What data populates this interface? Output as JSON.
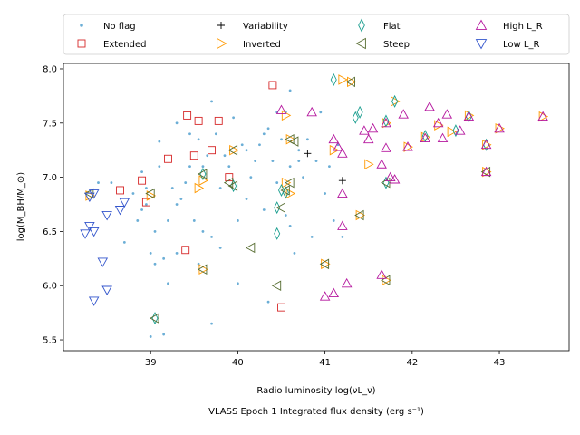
{
  "chart_data": {
    "type": "scatter",
    "title": "",
    "xlabel": "Radio luminosity log(νL_ν)",
    "ylabel": "log(M_BH/M_⊙)",
    "caption": "VLASS Epoch 1 Integrated flux density (erg s⁻¹)",
    "xlim": [
      38.0,
      43.8
    ],
    "ylim": [
      5.4,
      8.05
    ],
    "xticks": [
      39,
      40,
      41,
      42,
      43
    ],
    "yticks": [
      5.5,
      6.0,
      6.5,
      7.0,
      7.5,
      8.0
    ],
    "legend_position": "upper-outside",
    "series": [
      {
        "name": "No flag",
        "marker": "dot",
        "color": "#6baed6",
        "points": [
          [
            38.4,
            6.95
          ],
          [
            38.55,
            6.95
          ],
          [
            38.7,
            6.4
          ],
          [
            38.8,
            6.85
          ],
          [
            38.85,
            6.6
          ],
          [
            38.9,
            6.7
          ],
          [
            38.95,
            6.75
          ],
          [
            39.0,
            6.3
          ],
          [
            39.05,
            6.5
          ],
          [
            39.1,
            7.1
          ],
          [
            39.15,
            6.25
          ],
          [
            39.2,
            6.6
          ],
          [
            39.25,
            6.9
          ],
          [
            39.3,
            6.3
          ],
          [
            39.3,
            7.5
          ],
          [
            39.35,
            6.8
          ],
          [
            39.4,
            6.95
          ],
          [
            39.45,
            7.1
          ],
          [
            39.5,
            6.6
          ],
          [
            39.55,
            7.35
          ],
          [
            39.6,
            6.5
          ],
          [
            39.65,
            7.2
          ],
          [
            39.7,
            6.45
          ],
          [
            39.7,
            7.7
          ],
          [
            39.75,
            7.4
          ],
          [
            39.8,
            6.9
          ],
          [
            39.85,
            7.2
          ],
          [
            39.9,
            7.1
          ],
          [
            40.0,
            6.6
          ],
          [
            40.05,
            7.3
          ],
          [
            40.1,
            6.8
          ],
          [
            40.15,
            7.0
          ],
          [
            40.2,
            7.15
          ],
          [
            40.25,
            7.3
          ],
          [
            40.3,
            6.7
          ],
          [
            40.35,
            7.45
          ],
          [
            40.4,
            7.15
          ],
          [
            40.45,
            6.95
          ],
          [
            40.5,
            7.35
          ],
          [
            40.55,
            6.65
          ],
          [
            40.6,
            7.1
          ],
          [
            40.6,
            7.8
          ],
          [
            40.65,
            6.3
          ],
          [
            40.7,
            7.25
          ],
          [
            40.75,
            7.0
          ],
          [
            40.8,
            7.35
          ],
          [
            40.85,
            6.45
          ],
          [
            40.9,
            7.15
          ],
          [
            40.95,
            7.6
          ],
          [
            41.0,
            6.85
          ],
          [
            41.05,
            7.1
          ],
          [
            41.1,
            6.6
          ],
          [
            41.15,
            7.3
          ],
          [
            41.2,
            6.45
          ],
          [
            39.15,
            5.55
          ],
          [
            39.0,
            5.53
          ],
          [
            39.7,
            5.65
          ],
          [
            40.35,
            5.85
          ],
          [
            39.2,
            6.02
          ],
          [
            40.0,
            6.02
          ],
          [
            39.55,
            6.2
          ],
          [
            39.1,
            7.33
          ],
          [
            38.9,
            7.05
          ],
          [
            39.45,
            7.4
          ],
          [
            40.55,
            7.6
          ],
          [
            40.1,
            7.25
          ],
          [
            38.95,
            6.9
          ],
          [
            39.3,
            6.75
          ],
          [
            40.3,
            7.4
          ],
          [
            40.6,
            6.55
          ],
          [
            39.8,
            6.35
          ],
          [
            39.05,
            6.2
          ],
          [
            40.45,
            7.6
          ],
          [
            40.7,
            7.15
          ],
          [
            39.6,
            7.1
          ],
          [
            39.95,
            7.55
          ]
        ]
      },
      {
        "name": "Extended",
        "marker": "square",
        "color": "#d62728",
        "points": [
          [
            38.65,
            6.88
          ],
          [
            38.9,
            6.97
          ],
          [
            38.95,
            6.77
          ],
          [
            39.2,
            7.17
          ],
          [
            39.4,
            6.33
          ],
          [
            39.42,
            7.57
          ],
          [
            39.5,
            7.2
          ],
          [
            39.55,
            7.52
          ],
          [
            39.7,
            7.25
          ],
          [
            39.78,
            7.52
          ],
          [
            39.9,
            7.0
          ],
          [
            40.4,
            7.85
          ],
          [
            40.5,
            5.8
          ]
        ]
      },
      {
        "name": "Variability",
        "marker": "plus",
        "color": "#000000",
        "points": [
          [
            40.8,
            7.22
          ],
          [
            41.2,
            6.97
          ]
        ]
      },
      {
        "name": "Inverted",
        "marker": "triangle-right",
        "color": "#ff9900",
        "points": [
          [
            38.3,
            6.83
          ],
          [
            39.0,
            6.83
          ],
          [
            39.55,
            6.9
          ],
          [
            39.6,
            6.15
          ],
          [
            39.95,
            7.25
          ],
          [
            40.6,
            6.85
          ],
          [
            40.6,
            7.35
          ],
          [
            41.0,
            6.2
          ],
          [
            41.5,
            7.12
          ],
          [
            42.15,
            7.37
          ],
          [
            42.45,
            7.42
          ],
          [
            42.65,
            7.57
          ],
          [
            42.85,
            7.3
          ],
          [
            42.85,
            7.05
          ],
          [
            40.55,
            6.95
          ],
          [
            39.6,
            6.97
          ],
          [
            41.1,
            7.25
          ],
          [
            41.2,
            7.9
          ],
          [
            41.4,
            6.65
          ],
          [
            41.7,
            7.5
          ],
          [
            41.95,
            7.28
          ],
          [
            42.3,
            7.48
          ],
          [
            43.0,
            7.45
          ],
          [
            43.5,
            7.56
          ],
          [
            40.55,
            7.57
          ],
          [
            41.3,
            7.88
          ],
          [
            41.8,
            7.7
          ],
          [
            41.7,
            6.05
          ]
        ]
      },
      {
        "name": "Flat",
        "marker": "diamond",
        "color": "#1a9e8f",
        "points": [
          [
            39.05,
            5.7
          ],
          [
            40.45,
            6.48
          ],
          [
            40.45,
            6.72
          ],
          [
            41.1,
            7.9
          ],
          [
            41.35,
            7.55
          ],
          [
            41.4,
            7.6
          ],
          [
            41.7,
            7.52
          ],
          [
            41.7,
            6.95
          ],
          [
            41.8,
            7.7
          ],
          [
            42.15,
            7.38
          ],
          [
            42.5,
            7.43
          ],
          [
            42.65,
            7.56
          ],
          [
            42.85,
            7.3
          ],
          [
            39.95,
            6.92
          ],
          [
            40.5,
            6.88
          ],
          [
            39.6,
            7.03
          ],
          [
            40.55,
            6.86
          ]
        ]
      },
      {
        "name": "Steep",
        "marker": "triangle-left",
        "color": "#556b2f",
        "points": [
          [
            38.3,
            6.85
          ],
          [
            39.0,
            6.85
          ],
          [
            39.05,
            5.7
          ],
          [
            39.6,
            6.15
          ],
          [
            39.6,
            7.03
          ],
          [
            39.9,
            6.95
          ],
          [
            39.95,
            6.92
          ],
          [
            39.95,
            7.25
          ],
          [
            40.15,
            6.35
          ],
          [
            40.45,
            6.0
          ],
          [
            40.5,
            6.72
          ],
          [
            40.55,
            6.88
          ],
          [
            40.6,
            7.35
          ],
          [
            40.6,
            6.95
          ],
          [
            40.65,
            7.33
          ],
          [
            41.0,
            6.2
          ],
          [
            41.3,
            7.88
          ],
          [
            41.4,
            6.65
          ],
          [
            41.7,
            6.05
          ],
          [
            41.7,
            6.95
          ],
          [
            42.85,
            7.05
          ]
        ]
      },
      {
        "name": "High L_R",
        "marker": "triangle-up",
        "color": "#b5179e",
        "points": [
          [
            40.5,
            7.62
          ],
          [
            40.85,
            7.6
          ],
          [
            41.0,
            5.9
          ],
          [
            41.1,
            5.93
          ],
          [
            41.1,
            7.35
          ],
          [
            41.15,
            7.28
          ],
          [
            41.2,
            7.22
          ],
          [
            41.2,
            6.85
          ],
          [
            41.2,
            6.55
          ],
          [
            41.25,
            6.02
          ],
          [
            41.45,
            7.43
          ],
          [
            41.5,
            7.35
          ],
          [
            41.55,
            7.45
          ],
          [
            41.65,
            6.1
          ],
          [
            41.7,
            7.5
          ],
          [
            41.7,
            7.27
          ],
          [
            41.75,
            7.0
          ],
          [
            41.8,
            6.98
          ],
          [
            41.9,
            7.58
          ],
          [
            41.95,
            7.28
          ],
          [
            42.2,
            7.65
          ],
          [
            42.3,
            7.5
          ],
          [
            42.35,
            7.36
          ],
          [
            42.4,
            7.58
          ],
          [
            42.55,
            7.43
          ],
          [
            42.65,
            7.56
          ],
          [
            42.85,
            7.3
          ],
          [
            42.85,
            7.05
          ],
          [
            43.0,
            7.45
          ],
          [
            43.5,
            7.56
          ],
          [
            41.65,
            7.12
          ],
          [
            42.15,
            7.36
          ]
        ]
      },
      {
        "name": "Low L_R",
        "marker": "triangle-down",
        "color": "#3355cc",
        "points": [
          [
            38.25,
            6.48
          ],
          [
            38.3,
            6.55
          ],
          [
            38.3,
            6.82
          ],
          [
            38.35,
            6.85
          ],
          [
            38.35,
            6.5
          ],
          [
            38.35,
            5.86
          ],
          [
            38.45,
            6.22
          ],
          [
            38.5,
            5.96
          ],
          [
            38.5,
            6.65
          ],
          [
            38.65,
            6.7
          ],
          [
            38.7,
            6.77
          ]
        ]
      }
    ]
  }
}
